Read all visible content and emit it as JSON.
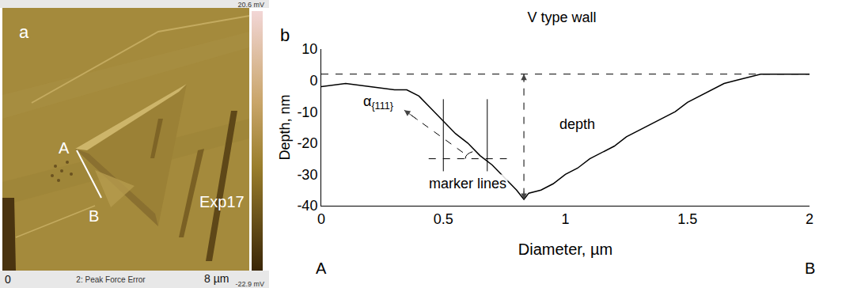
{
  "panel_a": {
    "letter": "a",
    "label_A": "A",
    "label_B": "B",
    "experiment": "Exp17",
    "channel": "2: Peak Force Error",
    "scale_max": "20.6 mV",
    "scale_min": "-22.9 mV",
    "axis_start": "0",
    "axis_end": "8 µm"
  },
  "chart_data": {
    "type": "line",
    "letter": "b",
    "title": "V type wall",
    "x_label": "Diameter, µm",
    "y_label": "Depth, nm",
    "x": [
      0,
      0.1,
      0.2,
      0.3,
      0.35,
      0.4,
      0.45,
      0.5,
      0.55,
      0.6,
      0.65,
      0.7,
      0.75,
      0.8,
      0.83,
      0.85,
      0.9,
      0.95,
      1.0,
      1.05,
      1.1,
      1.15,
      1.2,
      1.25,
      1.3,
      1.35,
      1.4,
      1.45,
      1.5,
      1.55,
      1.6,
      1.65,
      1.7,
      1.75,
      1.8,
      1.9,
      2.0
    ],
    "values": [
      -2,
      -1,
      -2,
      -3,
      -3,
      -5,
      -9,
      -13,
      -17,
      -20,
      -24,
      -27,
      -31,
      -35,
      -38,
      -36,
      -35,
      -33,
      -30,
      -28,
      -25,
      -23,
      -21,
      -18,
      -16,
      -14,
      -12,
      -10,
      -7,
      -5,
      -3,
      -1,
      0,
      1,
      2,
      2,
      2
    ],
    "color": "#000000",
    "xlim": [
      0,
      2
    ],
    "xticks": [
      0,
      0.5,
      1,
      1.5,
      2
    ],
    "ylim": [
      -40,
      10
    ],
    "yticks": [
      -40,
      -30,
      -20,
      -10,
      0,
      10
    ],
    "grid": false,
    "endpoint_labels": [
      {
        "text": "A",
        "x": 0
      },
      {
        "text": "B",
        "x": 2
      }
    ],
    "annotations": [
      {
        "text": "depth",
        "x": 0.97,
        "y": -14
      },
      {
        "text": "marker lines",
        "x": 0.6,
        "y": -33,
        "lines_x": [
          0.5,
          0.68
        ],
        "lines_y": [
          -6,
          -29
        ]
      },
      {
        "text": "α",
        "subscript": "{111}",
        "x": 0.3,
        "y": -7,
        "vertex_x": 0.66,
        "vertex_y": -25
      }
    ]
  }
}
